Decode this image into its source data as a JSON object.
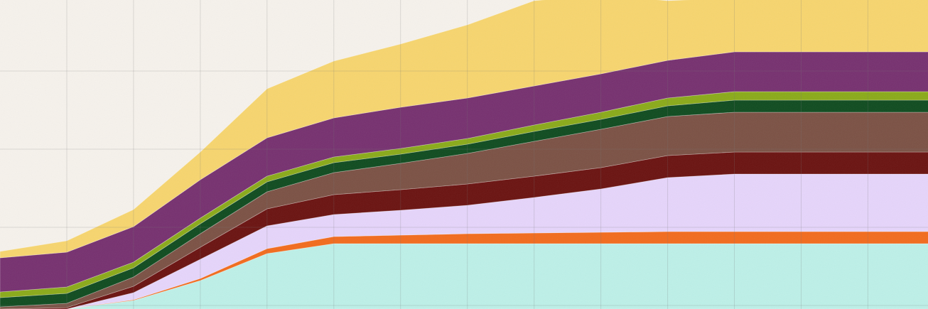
{
  "chart_data": {
    "type": "area",
    "stacked": true,
    "title": "",
    "xlabel": "",
    "ylabel": "",
    "grid": true,
    "legend": "none",
    "x": [
      0,
      1,
      2,
      3,
      4,
      5,
      6,
      7,
      8,
      9,
      10,
      11,
      12,
      13,
      14
    ],
    "xlim": [
      0,
      13.9
    ],
    "ylim": [
      0,
      435
    ],
    "background": "#f6f2ec",
    "grid_color": "#d9d4cc",
    "series": [
      {
        "color": "#bdf0e8",
        "values": [
          0,
          0,
          12,
          40,
          78,
          92,
          92,
          92,
          92,
          92,
          92,
          92,
          92,
          92,
          92
        ]
      },
      {
        "color": "#f26b1d",
        "values": [
          0,
          0,
          1,
          3,
          7,
          10,
          12,
          14,
          15,
          16,
          17,
          17,
          17,
          17,
          17
        ]
      },
      {
        "color": "#e6d5fb",
        "values": [
          0,
          0,
          10,
          27,
          32,
          31,
          35,
          40,
          50,
          61,
          76,
          81,
          81,
          81,
          81
        ]
      },
      {
        "color": "#6a1210",
        "values": [
          0,
          2,
          9,
          17,
          24,
          28,
          29,
          30,
          30,
          30,
          31,
          31,
          31,
          31,
          31
        ]
      },
      {
        "color": "#7b5144",
        "values": [
          3,
          6,
          13,
          19,
          24,
          31,
          37,
          43,
          49,
          54,
          55,
          56,
          56,
          56,
          56
        ]
      },
      {
        "color": "#0f4b1f",
        "values": [
          13,
          14,
          13,
          14,
          14,
          14,
          13,
          13,
          14,
          14,
          15,
          17,
          17,
          17,
          17
        ]
      },
      {
        "color": "#8aaa19",
        "values": [
          8,
          9,
          8,
          8,
          8,
          8,
          8,
          8,
          9,
          10,
          11,
          12,
          12,
          12,
          12
        ]
      },
      {
        "color": "#76306f",
        "values": [
          48,
          49,
          50,
          54,
          54,
          55,
          58,
          57,
          55,
          54,
          53,
          56,
          56,
          56,
          56
        ]
      },
      {
        "color": "#f7d56e",
        "values": [
          9,
          16,
          24,
          39,
          69,
          80,
          89,
          103,
          120,
          111,
          84,
          76,
          76,
          76,
          76
        ]
      }
    ]
  }
}
